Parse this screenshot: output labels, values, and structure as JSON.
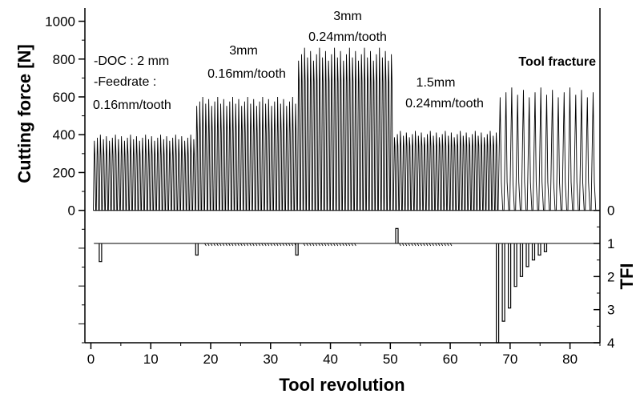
{
  "chart_data": {
    "type": "line",
    "title": "",
    "xlabel": "Tool revolution",
    "ylabel_left": "Cutting force [N]",
    "ylabel_right": "TFI",
    "xlim": [
      -1,
      85
    ],
    "ylim_left": [
      -700,
      1070
    ],
    "ylim_right": [
      0,
      4
    ],
    "x_ticks": [
      0,
      10,
      20,
      30,
      40,
      50,
      60,
      70,
      80
    ],
    "y_ticks_left": [
      0,
      200,
      400,
      600,
      800,
      1000
    ],
    "y_ticks_right": [
      0,
      1,
      2,
      3,
      4
    ],
    "grid": false,
    "annotations": [
      {
        "lines": [
          "-DOC : 2 mm",
          "-Feedrate :",
          "0.16mm/tooth"
        ],
        "bold": false
      },
      {
        "lines": [
          "3mm",
          "0.16mm/tooth"
        ],
        "bold": false
      },
      {
        "lines": [
          "3mm",
          "0.24mm/tooth"
        ],
        "bold": false
      },
      {
        "lines": [
          "1.5mm",
          "0.24mm/tooth"
        ],
        "bold": false
      },
      {
        "lines": [
          "Tool fracture"
        ],
        "bold": true
      }
    ],
    "series": [
      {
        "axis": "left",
        "segments": [
          {
            "x_start": 0.4,
            "x_end": 17.5,
            "force_peak": 400,
            "force_mean": 290,
            "teeth_per_rev": 2
          },
          {
            "x_start": 17.5,
            "x_end": 34.5,
            "force_peak": 600,
            "force_mean": 410,
            "teeth_per_rev": 2
          },
          {
            "x_start": 34.5,
            "x_end": 50.5,
            "force_peak": 860,
            "force_mean": 680,
            "teeth_per_rev": 2
          },
          {
            "x_start": 50.5,
            "x_end": 68.0,
            "force_peak": 420,
            "force_mean": 340,
            "teeth_per_rev": 2
          },
          {
            "x_start": 68.0,
            "x_end": 84.5,
            "force_peak": 650,
            "force_mean": 150,
            "teeth_per_rev": 1
          }
        ]
      },
      {
        "axis": "right",
        "baseline": 1,
        "x_start": 0.5,
        "x_end": 84.5,
        "events": [
          {
            "x": 1.8,
            "tfi": 1.55
          },
          {
            "x": 17.9,
            "tfi": 1.35
          },
          {
            "x": 34.6,
            "tfi": 1.35
          },
          {
            "x": 51.3,
            "tfi": 0.55
          },
          {
            "x": 68.1,
            "tfi": 4.0
          },
          {
            "x": 69.1,
            "tfi": 3.35
          },
          {
            "x": 70.1,
            "tfi": 2.95
          },
          {
            "x": 71.1,
            "tfi": 2.3
          },
          {
            "x": 72.1,
            "tfi": 2.0
          },
          {
            "x": 73.1,
            "tfi": 1.7
          },
          {
            "x": 74.1,
            "tfi": 1.5
          },
          {
            "x": 75.1,
            "tfi": 1.35
          },
          {
            "x": 76.1,
            "tfi": 1.25
          }
        ],
        "ripple_ranges": [
          {
            "x_start": 19.0,
            "x_end": 34.0
          },
          {
            "x_start": 35.5,
            "x_end": 44.0
          },
          {
            "x_start": 51.5,
            "x_end": 60.0
          }
        ]
      }
    ]
  }
}
